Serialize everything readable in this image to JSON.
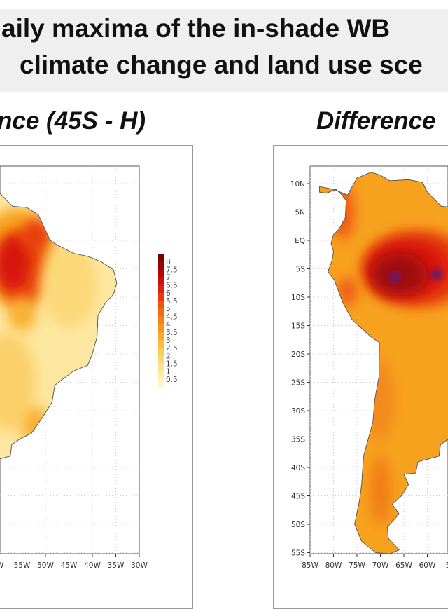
{
  "header": {
    "title_line_1": "aily maxima of the in-shade WB",
    "title_line_2": "climate change and land use sce"
  },
  "panels": [
    {
      "subtitle": "nce (45S - H)",
      "x_ticks": [
        "W",
        "55W",
        "50W",
        "45W",
        "40W",
        "35W",
        "30W"
      ],
      "y_ticks": [],
      "colorbar": {
        "labels": [
          "8",
          "7.5",
          "7",
          "6.5",
          "6",
          "5.5",
          "5",
          "4.5",
          "4",
          "3.5",
          "3",
          "2.5",
          "2",
          "1.5",
          "1",
          "0.5"
        ],
        "colors": [
          "#7a0000",
          "#9e0000",
          "#b80505",
          "#cc1010",
          "#dd2010",
          "#e83a10",
          "#ef5512",
          "#f26c14",
          "#f58218",
          "#f7981c",
          "#f8ab24",
          "#f9bd38",
          "#fbcd55",
          "#fcd972",
          "#fde48e",
          "#feeeaa",
          "#fff6c8"
        ]
      }
    },
    {
      "subtitle": "Difference",
      "x_ticks": [
        "85W",
        "80W",
        "75W",
        "70W",
        "65W",
        "60W",
        "5"
      ],
      "y_ticks": [
        "10N",
        "5N",
        "EQ",
        "5S",
        "10S",
        "15S",
        "20S",
        "25S",
        "30S",
        "35S",
        "40S",
        "45S",
        "50S",
        "55S"
      ]
    }
  ],
  "colors": {
    "banner": "#efefef",
    "land_left": "#fde7a0",
    "land_right": "#f7a21f",
    "hot": "#d8180c",
    "hottest": "#5b1f7a"
  }
}
